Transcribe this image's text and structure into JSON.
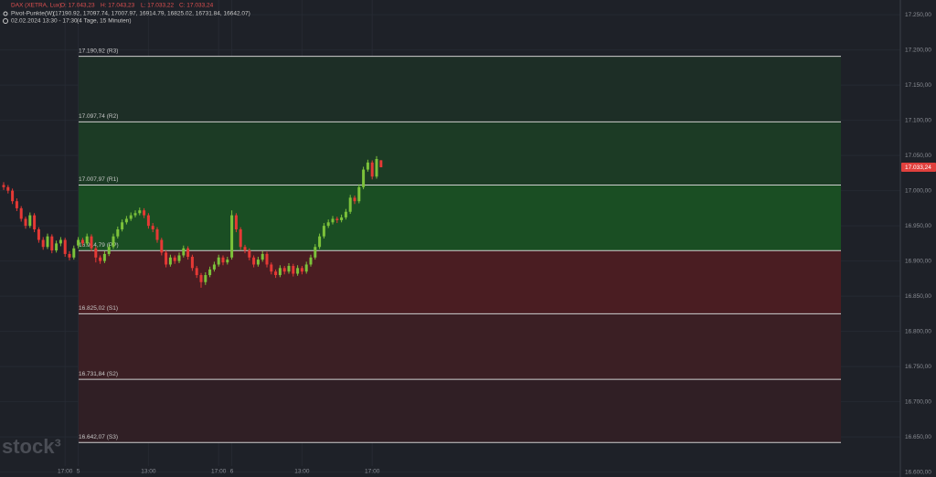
{
  "chart_data": {
    "type": "candlestick",
    "header": {
      "symbol": "DAX (XETRA, Lux)",
      "open": "O: 17.043,23",
      "high": "H: 17.043,23",
      "low": "L: 17.033,22",
      "close": "C: 17.033,24",
      "indicator": "Pivot-Punkte(W)",
      "indicator_values": "(17190.92, 17097.74, 17007.97, 16914.79, 16825.02, 16731.84, 16642.07)",
      "period": "02.02.2024 13:30 - 17:30",
      "period_note": "(4 Tage, 15 Minuten)"
    },
    "watermark": "stock³",
    "categories": [
      null,
      null,
      null,
      null,
      null,
      null,
      null,
      null,
      null,
      null,
      null,
      null,
      null,
      null,
      "17:00",
      null,
      null,
      "5",
      null,
      null,
      null,
      null,
      null,
      null,
      null,
      null,
      null,
      null,
      null,
      null,
      null,
      null,
      null,
      "13:00",
      null,
      null,
      null,
      null,
      null,
      null,
      null,
      null,
      null,
      null,
      null,
      null,
      null,
      null,
      null,
      "17:00",
      null,
      null,
      "6",
      null,
      null,
      null,
      null,
      null,
      null,
      null,
      null,
      null,
      null,
      null,
      null,
      null,
      null,
      null,
      "13:00",
      null,
      null,
      null,
      null,
      null,
      null,
      null,
      null,
      null,
      null,
      null,
      null,
      null,
      null,
      null,
      "17:00",
      null,
      null
    ],
    "ohlc": [
      [
        17008,
        17012,
        17001,
        17005
      ],
      [
        17005,
        17008,
        16996,
        17000
      ],
      [
        17000,
        17003,
        16981,
        16985
      ],
      [
        16985,
        16989,
        16971,
        16975
      ],
      [
        16975,
        16978,
        16956,
        16960
      ],
      [
        16960,
        16963,
        16946,
        16950
      ],
      [
        16950,
        16969,
        16947,
        16965
      ],
      [
        16965,
        16968,
        16941,
        16945
      ],
      [
        16945,
        16948,
        16926,
        16930
      ],
      [
        16930,
        16934,
        16916,
        16920
      ],
      [
        16920,
        16939,
        16917,
        16935
      ],
      [
        16935,
        16938,
        16911,
        16915
      ],
      [
        16915,
        16929,
        16912,
        16925
      ],
      [
        16925,
        16934,
        16921,
        16930
      ],
      [
        16930,
        16933,
        16906,
        16910
      ],
      [
        16910,
        16914,
        16901,
        16905
      ],
      [
        16905,
        16922,
        16902,
        16918
      ],
      [
        16922,
        16934,
        16918,
        16930
      ],
      [
        16930,
        16933,
        16921,
        16925
      ],
      [
        16925,
        16939,
        16922,
        16935
      ],
      [
        16935,
        16938,
        16914,
        16918
      ],
      [
        16918,
        16921,
        16898,
        16905
      ],
      [
        16905,
        16908,
        16896,
        16900
      ],
      [
        16900,
        16914,
        16897,
        16910
      ],
      [
        16910,
        16924,
        16907,
        16920
      ],
      [
        16920,
        16939,
        16917,
        16935
      ],
      [
        16935,
        16949,
        16932,
        16945
      ],
      [
        16945,
        16959,
        16942,
        16955
      ],
      [
        16955,
        16964,
        16952,
        16960
      ],
      [
        16960,
        16969,
        16957,
        16965
      ],
      [
        16965,
        16972,
        16962,
        16968
      ],
      [
        16968,
        16976,
        16965,
        16972
      ],
      [
        16972,
        16975,
        16961,
        16965
      ],
      [
        16965,
        16968,
        16946,
        16950
      ],
      [
        16950,
        16954,
        16941,
        16945
      ],
      [
        16945,
        16948,
        16926,
        16930
      ],
      [
        16930,
        16933,
        16908,
        16912
      ],
      [
        16912,
        16915,
        16891,
        16895
      ],
      [
        16895,
        16909,
        16892,
        16905
      ],
      [
        16905,
        16908,
        16896,
        16900
      ],
      [
        16900,
        16912,
        16897,
        16908
      ],
      [
        16908,
        16922,
        16905,
        16918
      ],
      [
        16918,
        16921,
        16902,
        16906
      ],
      [
        16906,
        16909,
        16886,
        16890
      ],
      [
        16890,
        16893,
        16876,
        16880
      ],
      [
        16880,
        16883,
        16862,
        16870
      ],
      [
        16870,
        16884,
        16866,
        16880
      ],
      [
        16880,
        16892,
        16877,
        16888
      ],
      [
        16888,
        16899,
        16885,
        16895
      ],
      [
        16895,
        16909,
        16892,
        16905
      ],
      [
        16905,
        16908,
        16894,
        16898
      ],
      [
        16898,
        16906,
        16895,
        16902
      ],
      [
        16905,
        16972,
        16902,
        16965
      ],
      [
        16965,
        16968,
        16941,
        16945
      ],
      [
        16945,
        16948,
        16916,
        16920
      ],
      [
        16920,
        16923,
        16911,
        16915
      ],
      [
        16915,
        16918,
        16901,
        16905
      ],
      [
        16905,
        16908,
        16891,
        16895
      ],
      [
        16895,
        16906,
        16892,
        16902
      ],
      [
        16902,
        16914,
        16899,
        16910
      ],
      [
        16910,
        16913,
        16891,
        16895
      ],
      [
        16895,
        16898,
        16881,
        16885
      ],
      [
        16885,
        16888,
        16876,
        16880
      ],
      [
        16880,
        16894,
        16877,
        16890
      ],
      [
        16890,
        16893,
        16881,
        16885
      ],
      [
        16885,
        16897,
        16882,
        16893
      ],
      [
        16893,
        16896,
        16878,
        16882
      ],
      [
        16882,
        16894,
        16879,
        16890
      ],
      [
        16890,
        16893,
        16881,
        16885
      ],
      [
        16885,
        16899,
        16882,
        16895
      ],
      [
        16895,
        16909,
        16892,
        16905
      ],
      [
        16905,
        16924,
        16902,
        16920
      ],
      [
        16920,
        16939,
        16917,
        16935
      ],
      [
        16935,
        16954,
        16932,
        16950
      ],
      [
        16950,
        16959,
        16947,
        16955
      ],
      [
        16955,
        16964,
        16952,
        16960
      ],
      [
        16960,
        16963,
        16954,
        16958
      ],
      [
        16958,
        16966,
        16955,
        16962
      ],
      [
        16962,
        16974,
        16959,
        16970
      ],
      [
        16970,
        16994,
        16967,
        16990
      ],
      [
        16990,
        16993,
        16981,
        16985
      ],
      [
        16985,
        17009,
        16982,
        17005
      ],
      [
        17005,
        17034,
        17002,
        17030
      ],
      [
        17030,
        17044,
        17027,
        17040
      ],
      [
        17040,
        17043,
        17016,
        17020
      ],
      [
        17020,
        17049,
        17017,
        17045
      ],
      [
        17043.23,
        17043.23,
        17033.22,
        17033.24
      ]
    ],
    "up_color": "#7cc23a",
    "down_color": "#e53935",
    "pivots": [
      {
        "value": 17190.92,
        "label": "17.190,92 (R3)"
      },
      {
        "value": 17097.74,
        "label": "17.097,74 (R2)"
      },
      {
        "value": 17007.97,
        "label": "17.007,97 (R1)"
      },
      {
        "value": 16914.79,
        "label": "16.914,79 (PP)"
      },
      {
        "value": 16825.02,
        "label": "16.825,02 (S1)"
      },
      {
        "value": 16731.84,
        "label": "16.731,84 (S2)"
      },
      {
        "value": 16642.07,
        "label": "16.642,07 (S3)"
      }
    ],
    "zone_colors": [
      "#1d2e26",
      "#1c3b25",
      "#1a4e23",
      "#4a1d22",
      "#3b1f24",
      "#301f25"
    ],
    "last_price": {
      "value": 17033.24,
      "label": "17.033,24"
    },
    "ylim": [
      16593,
      17271
    ],
    "yticks": [
      {
        "value": 16600,
        "label": "16.600,00"
      },
      {
        "value": 16650,
        "label": "16.650,00"
      },
      {
        "value": 16700,
        "label": "16.700,00"
      },
      {
        "value": 16750,
        "label": "16.750,00"
      },
      {
        "value": 16800,
        "label": "16.800,00"
      },
      {
        "value": 16850,
        "label": "16.850,00"
      },
      {
        "value": 16900,
        "label": "16.900,00"
      },
      {
        "value": 16950,
        "label": "16.950,00"
      },
      {
        "value": 17000,
        "label": "17.000,00"
      },
      {
        "value": 17050,
        "label": "17.050,00"
      },
      {
        "value": 17100,
        "label": "17.100,00"
      },
      {
        "value": 17150,
        "label": "17.150,00"
      },
      {
        "value": 17200,
        "label": "17.200,00"
      },
      {
        "value": 17250,
        "label": "17.250,00"
      }
    ],
    "grid": true
  }
}
